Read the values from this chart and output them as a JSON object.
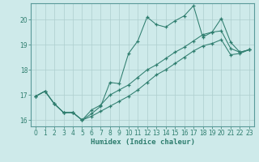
{
  "title": "",
  "xlabel": "Humidex (Indice chaleur)",
  "background_color": "#ceeaea",
  "grid_color": "#aecece",
  "line_color": "#2e7d6e",
  "xlim": [
    -0.5,
    23.5
  ],
  "ylim": [
    15.75,
    20.65
  ],
  "yticks": [
    16,
    17,
    18,
    19,
    20
  ],
  "xticks": [
    0,
    1,
    2,
    3,
    4,
    5,
    6,
    7,
    8,
    9,
    10,
    11,
    12,
    13,
    14,
    15,
    16,
    17,
    18,
    19,
    20,
    21,
    22,
    23
  ],
  "series1_x": [
    0,
    1,
    2,
    3,
    4,
    5,
    6,
    7,
    8,
    9,
    10,
    11,
    12,
    13,
    14,
    15,
    16,
    17,
    18,
    19,
    20,
    21,
    22,
    23
  ],
  "series1_y": [
    16.95,
    17.15,
    16.65,
    16.3,
    16.3,
    16.0,
    16.25,
    16.55,
    17.5,
    17.45,
    18.65,
    19.15,
    20.1,
    19.8,
    19.7,
    19.95,
    20.15,
    20.55,
    19.3,
    19.5,
    20.05,
    19.1,
    18.7,
    18.8
  ],
  "series2_x": [
    0,
    1,
    2,
    3,
    4,
    5,
    6,
    7,
    8,
    9,
    10,
    11,
    12,
    13,
    14,
    15,
    16,
    17,
    18,
    19,
    20,
    21,
    22,
    23
  ],
  "series2_y": [
    16.95,
    17.15,
    16.65,
    16.3,
    16.3,
    16.0,
    16.4,
    16.6,
    17.0,
    17.2,
    17.4,
    17.7,
    18.0,
    18.2,
    18.45,
    18.7,
    18.9,
    19.15,
    19.4,
    19.5,
    19.55,
    18.85,
    18.7,
    18.8
  ],
  "series3_x": [
    0,
    1,
    2,
    3,
    4,
    5,
    6,
    7,
    8,
    9,
    10,
    11,
    12,
    13,
    14,
    15,
    16,
    17,
    18,
    19,
    20,
    21,
    22,
    23
  ],
  "series3_y": [
    16.95,
    17.15,
    16.65,
    16.3,
    16.3,
    16.0,
    16.15,
    16.35,
    16.55,
    16.75,
    16.95,
    17.2,
    17.5,
    17.8,
    18.0,
    18.25,
    18.5,
    18.75,
    18.95,
    19.05,
    19.2,
    18.6,
    18.65,
    18.8
  ]
}
